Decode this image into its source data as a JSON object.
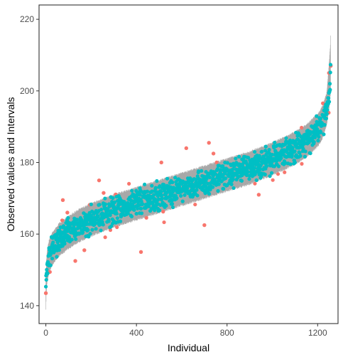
{
  "chart_data": {
    "type": "scatter",
    "xlabel": "Individual",
    "ylabel": "Observed values and Intervals",
    "xlim": [
      -30,
      1290
    ],
    "ylim": [
      135,
      224
    ],
    "x_ticks": [
      0,
      400,
      800,
      1200
    ],
    "y_ticks": [
      140,
      160,
      180,
      200,
      220
    ],
    "x_tick_labels": [
      "0",
      "400",
      "800",
      "1200"
    ],
    "y_tick_labels": [
      "140",
      "160",
      "180",
      "200",
      "220"
    ],
    "n_individuals": 1258,
    "grid": false,
    "legend": "none",
    "colors": {
      "inside": "#00BFC4",
      "outside": "#F8766D",
      "interval": "#A6A6A6"
    },
    "fitted_curve": {
      "x": [
        0,
        2,
        6,
        15,
        30,
        60,
        100,
        150,
        200,
        300,
        400,
        500,
        600,
        700,
        800,
        900,
        1000,
        1100,
        1150,
        1200,
        1220,
        1240,
        1250,
        1256,
        1258
      ],
      "y": [
        143.5,
        148,
        151,
        154,
        156,
        158.5,
        160.5,
        162.5,
        164,
        166.5,
        168.5,
        170.5,
        172.5,
        174.5,
        176.5,
        178.5,
        181,
        184,
        186,
        189,
        191,
        195,
        199,
        203,
        207
      ]
    },
    "interval_halfwidth": 4.2,
    "highlighted_outside_points": [
      {
        "x": 0,
        "y": 143.5
      },
      {
        "x": 75,
        "y": 169.5
      },
      {
        "x": 95,
        "y": 166
      },
      {
        "x": 130,
        "y": 152.5
      },
      {
        "x": 170,
        "y": 155.5
      },
      {
        "x": 235,
        "y": 175
      },
      {
        "x": 255,
        "y": 171.5
      },
      {
        "x": 420,
        "y": 155
      },
      {
        "x": 510,
        "y": 180
      },
      {
        "x": 620,
        "y": 184
      },
      {
        "x": 700,
        "y": 162.5
      },
      {
        "x": 720,
        "y": 185.5
      },
      {
        "x": 740,
        "y": 182.5
      },
      {
        "x": 940,
        "y": 171
      },
      {
        "x": 1250,
        "y": 205
      },
      {
        "x": 1258,
        "y": 207
      }
    ]
  }
}
